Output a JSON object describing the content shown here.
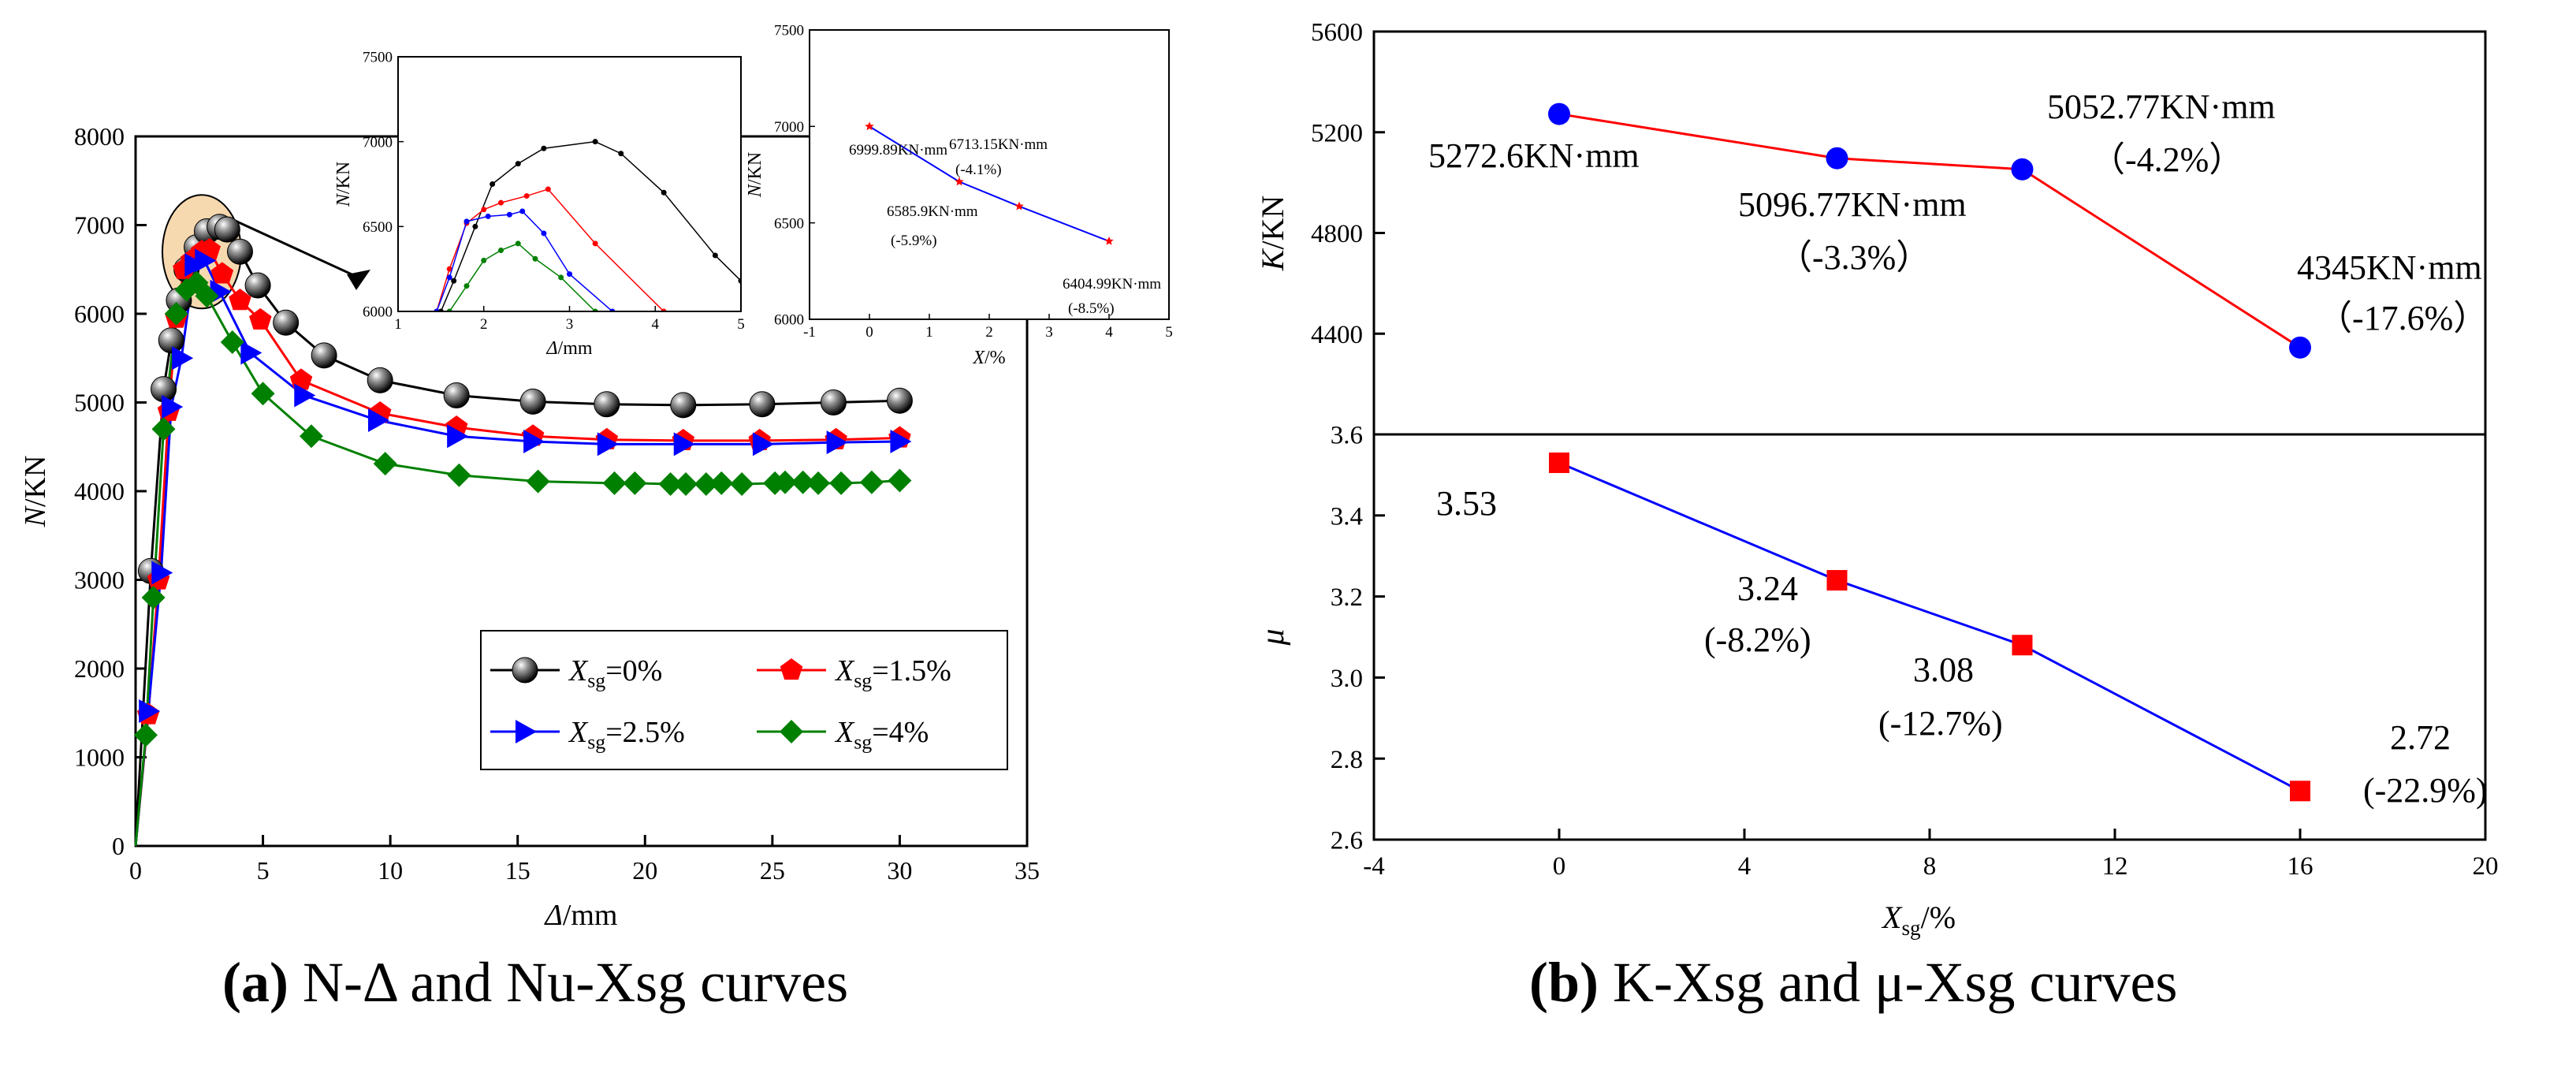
{
  "chart_data": [
    {
      "type": "line",
      "id": "nd-main",
      "xlabel": "Δ/mm",
      "ylabel": "N/KN",
      "xlim": [
        0,
        35
      ],
      "ylim": [
        0,
        8000
      ],
      "xticks": [
        "0",
        "5",
        "10",
        "15",
        "20",
        "25",
        "30",
        "35"
      ],
      "yticks": [
        "0",
        "1000",
        "2000",
        "3000",
        "4000",
        "5000",
        "6000",
        "7000",
        "8000"
      ],
      "legend_position": "bottom-right",
      "series": [
        {
          "name": "Xsg=0%",
          "color": "#000000",
          "marker": "sphere",
          "x": [
            0,
            0.6,
            1.1,
            1.4,
            1.7,
            2.0,
            2.4,
            2.8,
            3.3,
            3.6,
            4.1,
            4.8,
            5.9,
            7.4,
            9.6,
            12.6,
            15.6,
            18.5,
            21.5,
            24.6,
            27.4,
            30.0
          ],
          "y": [
            0,
            3100,
            5150,
            5700,
            6150,
            6500,
            6750,
            6930,
            6980,
            6950,
            6700,
            6320,
            5900,
            5530,
            5250,
            5080,
            5010,
            4980,
            4970,
            4980,
            5000,
            5020
          ]
        },
        {
          "name": "Xsg=1.5%",
          "color": "#ff0000",
          "marker": "pentagon",
          "x": [
            0,
            0.5,
            0.9,
            1.3,
            1.6,
            1.9,
            2.2,
            2.6,
            2.9,
            3.4,
            4.1,
            4.9,
            6.5,
            9.6,
            12.6,
            15.6,
            18.5,
            21.5,
            24.5,
            27.5,
            30.0
          ],
          "y": [
            0,
            1480,
            3000,
            4900,
            5950,
            6500,
            6600,
            6700,
            6720,
            6450,
            6150,
            5930,
            5250,
            4880,
            4720,
            4620,
            4580,
            4570,
            4570,
            4580,
            4600
          ]
        },
        {
          "name": "Xsg=2.5%",
          "color": "#0000ff",
          "marker": "triangle-right",
          "x": [
            0,
            0.5,
            1.0,
            1.4,
            1.8,
            2.3,
            2.7,
            3.3,
            4.5,
            6.6,
            9.5,
            12.6,
            15.6,
            18.5,
            21.5,
            24.6,
            27.5,
            30.0
          ],
          "y": [
            0,
            1520,
            3080,
            4950,
            5500,
            6550,
            6600,
            6250,
            5560,
            5080,
            4800,
            4620,
            4560,
            4530,
            4530,
            4530,
            4550,
            4560
          ]
        },
        {
          "name": "Xsg=4%",
          "color": "#008000",
          "marker": "diamond",
          "x": [
            0,
            0.4,
            0.7,
            1.1,
            1.6,
            2.0,
            2.4,
            2.8,
            3.8,
            5.0,
            6.9,
            9.8,
            12.7,
            15.8,
            18.8,
            19.6,
            21.0,
            21.6,
            22.4,
            23.0,
            23.8,
            25.1,
            25.5,
            26.2,
            26.8,
            27.7,
            28.9,
            30.0
          ],
          "y": [
            0,
            1250,
            2800,
            4700,
            6000,
            6270,
            6350,
            6200,
            5680,
            5100,
            4620,
            4310,
            4180,
            4110,
            4090,
            4090,
            4080,
            4080,
            4080,
            4090,
            4080,
            4090,
            4100,
            4100,
            4090,
            4090,
            4100,
            4120
          ]
        }
      ]
    },
    {
      "type": "line",
      "id": "nd-zoom-inset",
      "xlabel": "Δ/mm",
      "ylabel": "N/KN",
      "xlim": [
        1,
        5
      ],
      "ylim": [
        6000,
        7500
      ],
      "xticks": [
        "1",
        "2",
        "3",
        "4",
        "5"
      ],
      "yticks": [
        "6000",
        "6500",
        "7000",
        "7500"
      ],
      "series": [
        {
          "name": "Xsg=0%",
          "color": "#000000",
          "x": [
            1.5,
            1.65,
            1.9,
            2.1,
            2.4,
            2.7,
            3.3,
            3.6,
            4.1,
            4.7,
            5.0
          ],
          "y": [
            6000,
            6180,
            6500,
            6750,
            6870,
            6960,
            7000,
            6930,
            6700,
            6330,
            6180
          ]
        },
        {
          "name": "Xsg=1.5%",
          "color": "#ff0000",
          "x": [
            1.45,
            1.6,
            1.8,
            2.0,
            2.2,
            2.5,
            2.75,
            3.3,
            4.1
          ],
          "y": [
            6000,
            6250,
            6520,
            6600,
            6640,
            6680,
            6720,
            6400,
            6000
          ]
        },
        {
          "name": "Xsg=2.5%",
          "color": "#0000ff",
          "x": [
            1.45,
            1.6,
            1.8,
            2.05,
            2.3,
            2.45,
            2.7,
            3.0,
            3.5
          ],
          "y": [
            6000,
            6200,
            6530,
            6560,
            6570,
            6590,
            6460,
            6220,
            6000
          ]
        },
        {
          "name": "Xsg=4%",
          "color": "#008000",
          "x": [
            1.6,
            1.8,
            2.0,
            2.2,
            2.4,
            2.6,
            2.9,
            3.3
          ],
          "y": [
            6000,
            6150,
            6300,
            6360,
            6400,
            6310,
            6200,
            6000
          ]
        }
      ]
    },
    {
      "type": "line",
      "id": "nu-x-inset",
      "xlabel": "X/%",
      "ylabel": "N/KN",
      "xlim": [
        -1,
        5
      ],
      "ylim": [
        6000,
        7500
      ],
      "xticks": [
        "-1",
        "0",
        "1",
        "2",
        "3",
        "4",
        "5"
      ],
      "yticks": [
        "6000",
        "6500",
        "7000",
        "7500"
      ],
      "series": [
        {
          "color": "#0000ff",
          "x": [
            0,
            1.5,
            2.5,
            4
          ],
          "y": [
            6999.89,
            6713.15,
            6585.9,
            6404.99
          ]
        }
      ],
      "annotations": [
        {
          "text": "6999.89KN·mm",
          "x": 0,
          "y": 6999.89
        },
        {
          "text": "6713.15KN·mm",
          "x": 1.5,
          "y": 6713.15
        },
        {
          "text": "(-4.1%)",
          "x": 1.5,
          "y": 6713.15
        },
        {
          "text": "6585.9KN·mm",
          "x": 2.5,
          "y": 6585.9
        },
        {
          "text": "(-5.9%)",
          "x": 2.5,
          "y": 6585.9
        },
        {
          "text": "6404.99KN·mm",
          "x": 4,
          "y": 6404.99
        },
        {
          "text": "(-8.5%)",
          "x": 4,
          "y": 6404.99
        }
      ]
    },
    {
      "type": "line",
      "id": "k-xsg",
      "ylabel": "K/KN",
      "xlim": [
        -4,
        20
      ],
      "ylim": [
        4000,
        5600
      ],
      "yticks": [
        "4400",
        "4800",
        "5200",
        "5600"
      ],
      "series": [
        {
          "color": "#ff0000",
          "marker_color": "#0000ff",
          "marker": "circle",
          "x": [
            0,
            6,
            10,
            16
          ],
          "y": [
            5272.6,
            5096.77,
            5052.77,
            4345
          ]
        }
      ],
      "annotations": [
        {
          "text": "5272.6KN·mm"
        },
        {
          "text": "5096.77KN·mm"
        },
        {
          "text": "（-3.3%）"
        },
        {
          "text": "5052.77KN·mm"
        },
        {
          "text": "（-4.2%）"
        },
        {
          "text": "4345KN·mm"
        },
        {
          "text": "（-17.6%）"
        }
      ]
    },
    {
      "type": "line",
      "id": "mu-xsg",
      "xlabel": "Xsg/%",
      "ylabel": "μ",
      "xlim": [
        -4,
        20
      ],
      "ylim": [
        2.6,
        3.6
      ],
      "xticks": [
        "-4",
        "0",
        "4",
        "8",
        "12",
        "16",
        "20"
      ],
      "yticks": [
        "2.6",
        "2.8",
        "3.0",
        "3.2",
        "3.4",
        "3.6"
      ],
      "series": [
        {
          "color": "#0000ff",
          "marker_color": "#ff0000",
          "marker": "square",
          "x": [
            0,
            6,
            10,
            16
          ],
          "y": [
            3.53,
            3.24,
            3.08,
            2.72
          ]
        }
      ],
      "annotations": [
        {
          "text": "3.53"
        },
        {
          "text": "3.24"
        },
        {
          "text": "(-8.2%)"
        },
        {
          "text": "3.08"
        },
        {
          "text": "(-12.7%)"
        },
        {
          "text": "2.72"
        },
        {
          "text": "(-22.9%)"
        }
      ]
    }
  ],
  "captions": {
    "a": {
      "label": "(a)",
      "text": "N-Δ and Nu-Xsg curves"
    },
    "b": {
      "label": "(b)",
      "text": "K-Xsg and μ-Xsg curves"
    }
  }
}
